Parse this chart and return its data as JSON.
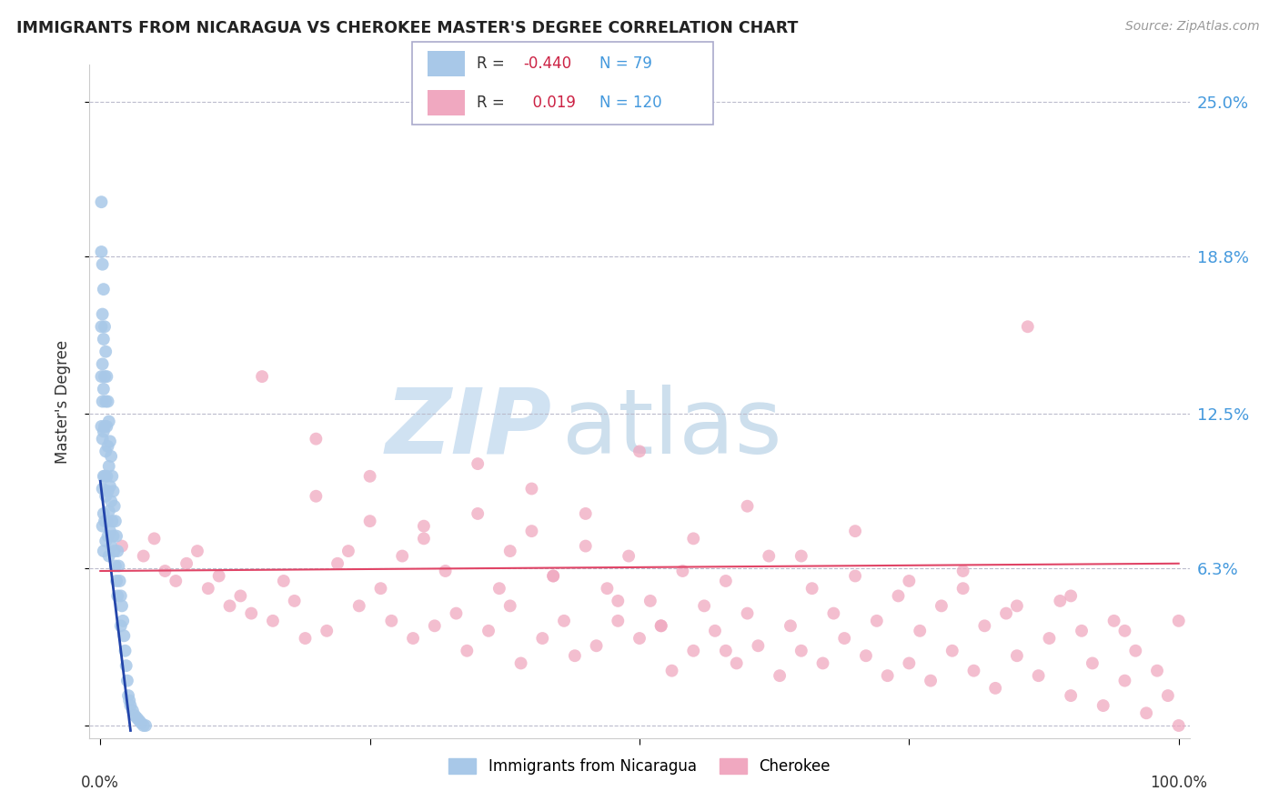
{
  "title": "IMMIGRANTS FROM NICARAGUA VS CHEROKEE MASTER'S DEGREE CORRELATION CHART",
  "source": "Source: ZipAtlas.com",
  "ylabel": "Master's Degree",
  "xlim": [
    0.0,
    1.0
  ],
  "ylim": [
    -0.005,
    0.265
  ],
  "yticks": [
    0.0,
    0.063,
    0.125,
    0.188,
    0.25
  ],
  "ytick_labels": [
    "",
    "6.3%",
    "12.5%",
    "18.8%",
    "25.0%"
  ],
  "blue_color": "#a8c8e8",
  "pink_color": "#f0a8c0",
  "blue_line_color": "#2244aa",
  "pink_line_color": "#e04466",
  "legend_blue_R": "-0.440",
  "legend_blue_N": "79",
  "legend_pink_R": "0.019",
  "legend_pink_N": "120",
  "legend_label_blue": "Immigrants from Nicaragua",
  "legend_label_pink": "Cherokee",
  "blue_scatter_x": [
    0.001,
    0.001,
    0.001,
    0.001,
    0.001,
    0.002,
    0.002,
    0.002,
    0.002,
    0.002,
    0.002,
    0.002,
    0.003,
    0.003,
    0.003,
    0.003,
    0.003,
    0.003,
    0.003,
    0.004,
    0.004,
    0.004,
    0.004,
    0.004,
    0.005,
    0.005,
    0.005,
    0.005,
    0.005,
    0.006,
    0.006,
    0.006,
    0.006,
    0.007,
    0.007,
    0.007,
    0.007,
    0.008,
    0.008,
    0.008,
    0.008,
    0.009,
    0.009,
    0.009,
    0.01,
    0.01,
    0.01,
    0.011,
    0.011,
    0.012,
    0.012,
    0.013,
    0.013,
    0.014,
    0.014,
    0.015,
    0.015,
    0.016,
    0.016,
    0.017,
    0.018,
    0.019,
    0.019,
    0.02,
    0.021,
    0.022,
    0.023,
    0.024,
    0.025,
    0.026,
    0.027,
    0.028,
    0.03,
    0.032,
    0.034,
    0.036,
    0.038,
    0.04,
    0.042
  ],
  "blue_scatter_y": [
    0.21,
    0.19,
    0.16,
    0.14,
    0.12,
    0.185,
    0.165,
    0.145,
    0.13,
    0.115,
    0.095,
    0.08,
    0.175,
    0.155,
    0.135,
    0.118,
    0.1,
    0.085,
    0.07,
    0.16,
    0.14,
    0.12,
    0.1,
    0.082,
    0.15,
    0.13,
    0.11,
    0.092,
    0.074,
    0.14,
    0.12,
    0.1,
    0.082,
    0.13,
    0.112,
    0.094,
    0.076,
    0.122,
    0.104,
    0.086,
    0.068,
    0.114,
    0.096,
    0.078,
    0.108,
    0.09,
    0.072,
    0.1,
    0.082,
    0.094,
    0.076,
    0.088,
    0.07,
    0.082,
    0.064,
    0.076,
    0.058,
    0.07,
    0.052,
    0.064,
    0.058,
    0.052,
    0.04,
    0.048,
    0.042,
    0.036,
    0.03,
    0.024,
    0.018,
    0.012,
    0.01,
    0.008,
    0.006,
    0.004,
    0.003,
    0.002,
    0.001,
    0.0,
    0.0
  ],
  "pink_scatter_x": [
    0.02,
    0.04,
    0.05,
    0.06,
    0.07,
    0.08,
    0.09,
    0.1,
    0.11,
    0.12,
    0.13,
    0.14,
    0.15,
    0.16,
    0.17,
    0.18,
    0.19,
    0.2,
    0.21,
    0.22,
    0.23,
    0.24,
    0.25,
    0.26,
    0.27,
    0.28,
    0.29,
    0.3,
    0.31,
    0.32,
    0.33,
    0.34,
    0.35,
    0.36,
    0.37,
    0.38,
    0.39,
    0.4,
    0.41,
    0.42,
    0.43,
    0.44,
    0.45,
    0.46,
    0.47,
    0.48,
    0.49,
    0.5,
    0.51,
    0.52,
    0.53,
    0.54,
    0.55,
    0.56,
    0.57,
    0.58,
    0.59,
    0.6,
    0.61,
    0.62,
    0.63,
    0.64,
    0.65,
    0.66,
    0.67,
    0.68,
    0.69,
    0.7,
    0.71,
    0.72,
    0.73,
    0.74,
    0.75,
    0.76,
    0.77,
    0.78,
    0.79,
    0.8,
    0.81,
    0.82,
    0.83,
    0.84,
    0.85,
    0.86,
    0.87,
    0.88,
    0.89,
    0.9,
    0.91,
    0.92,
    0.93,
    0.94,
    0.95,
    0.96,
    0.97,
    0.98,
    0.99,
    1.0,
    0.35,
    0.4,
    0.45,
    0.5,
    0.55,
    0.6,
    0.65,
    0.7,
    0.75,
    0.8,
    0.85,
    0.9,
    0.95,
    1.0,
    0.2,
    0.25,
    0.3,
    0.38,
    0.42,
    0.48,
    0.52,
    0.58
  ],
  "pink_scatter_y": [
    0.072,
    0.068,
    0.075,
    0.062,
    0.058,
    0.065,
    0.07,
    0.055,
    0.06,
    0.048,
    0.052,
    0.045,
    0.14,
    0.042,
    0.058,
    0.05,
    0.035,
    0.092,
    0.038,
    0.065,
    0.07,
    0.048,
    0.082,
    0.055,
    0.042,
    0.068,
    0.035,
    0.075,
    0.04,
    0.062,
    0.045,
    0.03,
    0.085,
    0.038,
    0.055,
    0.048,
    0.025,
    0.078,
    0.035,
    0.06,
    0.042,
    0.028,
    0.072,
    0.032,
    0.055,
    0.042,
    0.068,
    0.035,
    0.05,
    0.04,
    0.022,
    0.062,
    0.03,
    0.048,
    0.038,
    0.058,
    0.025,
    0.045,
    0.032,
    0.068,
    0.02,
    0.04,
    0.03,
    0.055,
    0.025,
    0.045,
    0.035,
    0.06,
    0.028,
    0.042,
    0.02,
    0.052,
    0.025,
    0.038,
    0.018,
    0.048,
    0.03,
    0.055,
    0.022,
    0.04,
    0.015,
    0.045,
    0.028,
    0.16,
    0.02,
    0.035,
    0.05,
    0.012,
    0.038,
    0.025,
    0.008,
    0.042,
    0.018,
    0.03,
    0.005,
    0.022,
    0.012,
    0.0,
    0.105,
    0.095,
    0.085,
    0.11,
    0.075,
    0.088,
    0.068,
    0.078,
    0.058,
    0.062,
    0.048,
    0.052,
    0.038,
    0.042,
    0.115,
    0.1,
    0.08,
    0.07,
    0.06,
    0.05,
    0.04,
    0.03
  ],
  "blue_line_x": [
    0.0,
    0.028
  ],
  "blue_line_y": [
    0.098,
    -0.002
  ],
  "pink_line_x": [
    0.0,
    1.0
  ],
  "pink_line_y": [
    0.062,
    0.065
  ]
}
